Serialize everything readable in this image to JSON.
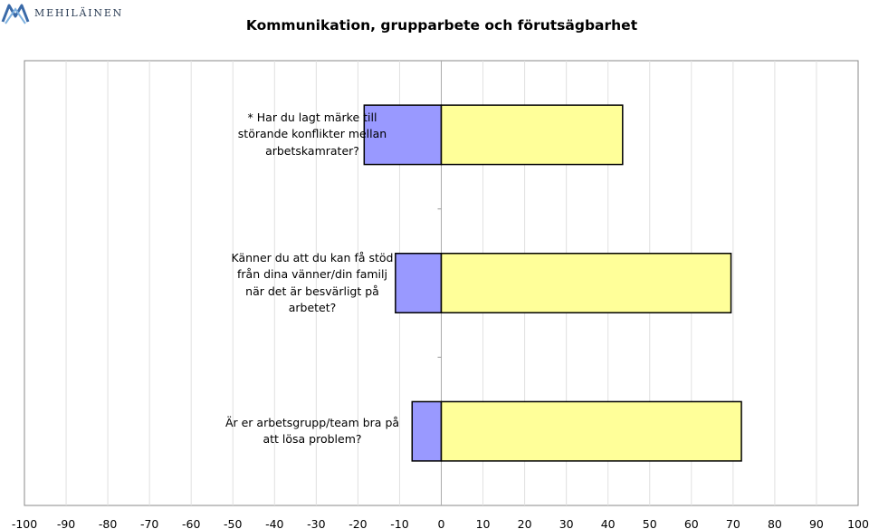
{
  "logo": {
    "text": "MEHILÄINEN"
  },
  "chart_data": {
    "type": "bar",
    "orientation": "horizontal",
    "stacked": "diverging",
    "title": "Kommunikation, grupparbete och förutsägbarhet",
    "xlim": [
      -100,
      100
    ],
    "xticks": [
      -100,
      -90,
      -80,
      -70,
      -60,
      -50,
      -40,
      -30,
      -20,
      -10,
      0,
      10,
      20,
      30,
      40,
      50,
      60,
      70,
      80,
      90,
      100
    ],
    "grid": true,
    "categories": [
      "* Har du lagt märke till störande konflikter mellan arbetskamrater?",
      "Känner du att du kan få stöd från dina vänner/din familj när det är besvärligt på arbetet?",
      "Är er arbetsgrupp/team bra på att lösa problem?"
    ],
    "series": [
      {
        "values": [
          -18.5,
          -11,
          -7
        ],
        "color": "#9999ff"
      },
      {
        "values": [
          43.5,
          69.5,
          72
        ],
        "color": "#ffff99"
      }
    ]
  }
}
